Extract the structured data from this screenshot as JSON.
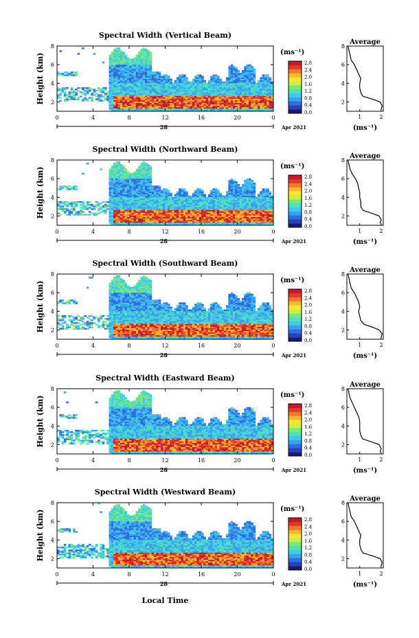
{
  "figure": {
    "date_label": "Apr 2021",
    "xlabel_bottom": "Local Time",
    "day_label": "28",
    "x_tick_labels": [
      "0",
      "4",
      "8",
      "12",
      "16",
      "20",
      "0"
    ],
    "colorbar_unit": "(ms⁻¹)",
    "colorbar_ticks": [
      "0.0",
      "0.4",
      "0.8",
      "1.2",
      "1.6",
      "2.0",
      "2.4",
      "2.8"
    ],
    "colormap": [
      "#1a1a6e",
      "#2d3fb5",
      "#2f6fe0",
      "#3aa0f0",
      "#45c8e8",
      "#4fe0c0",
      "#7de87a",
      "#c8f04a",
      "#f8e830",
      "#f8b830",
      "#f07a2a",
      "#e0382a",
      "#c8182a"
    ],
    "average_title": "Average",
    "average_unit": "(ms⁻¹)"
  },
  "chart_data": [
    {
      "type": "heatmap",
      "title": "Spectral Width (Vertical Beam)",
      "ylabel": "Height (km)",
      "xlabel": "Local Time",
      "xlim": [
        0,
        24
      ],
      "ylim": [
        1,
        8
      ],
      "y_ticks": [
        2,
        4,
        6,
        8
      ],
      "colorbar_range": [
        0.0,
        2.8
      ],
      "average_profile": {
        "title": "Average",
        "xlabel": "(ms⁻¹)",
        "x_ticks": [
          1,
          2
        ],
        "xlim": [
          0.4,
          2.1
        ],
        "ylim": [
          1,
          8
        ],
        "height": [
          1.2,
          1.6,
          2.0,
          2.3,
          2.6,
          3.0,
          3.5,
          4.0,
          4.5,
          5.0,
          5.5,
          6.0,
          6.5,
          7.0,
          7.5,
          8.0
        ],
        "width": [
          2.0,
          2.05,
          1.95,
          1.6,
          1.15,
          1.05,
          1.0,
          1.0,
          1.05,
          0.95,
          0.85,
          0.75,
          0.6,
          0.55,
          0.5,
          0.45
        ]
      }
    },
    {
      "type": "heatmap",
      "title": "Spectral Width (Northward Beam)",
      "ylabel": "Height (km)",
      "xlabel": "Local Time",
      "xlim": [
        0,
        24
      ],
      "ylim": [
        1,
        8
      ],
      "y_ticks": [
        2,
        4,
        6,
        8
      ],
      "colorbar_range": [
        0.0,
        2.8
      ],
      "average_profile": {
        "title": "Average",
        "xlabel": "(ms⁻¹)",
        "x_ticks": [
          1,
          2
        ],
        "xlim": [
          0.4,
          2.1
        ],
        "ylim": [
          1,
          8
        ],
        "height": [
          1.2,
          1.6,
          2.0,
          2.3,
          2.6,
          3.0,
          3.5,
          4.0,
          4.5,
          5.0,
          5.5,
          6.0,
          6.5,
          7.0,
          7.5,
          8.0
        ],
        "width": [
          1.95,
          2.0,
          1.9,
          1.55,
          1.15,
          1.05,
          1.05,
          1.0,
          1.0,
          0.95,
          0.9,
          0.8,
          0.65,
          0.55,
          0.5,
          0.45
        ]
      }
    },
    {
      "type": "heatmap",
      "title": "Spectral Width (Southward Beam)",
      "ylabel": "Height (km)",
      "xlabel": "Local Time",
      "xlim": [
        0,
        24
      ],
      "ylim": [
        1,
        8
      ],
      "y_ticks": [
        2,
        4,
        6,
        8
      ],
      "colorbar_range": [
        0.0,
        2.8
      ],
      "average_profile": {
        "title": "Average",
        "xlabel": "(ms⁻¹)",
        "x_ticks": [
          1,
          2
        ],
        "xlim": [
          0.4,
          2.1
        ],
        "ylim": [
          1,
          8
        ],
        "height": [
          1.2,
          1.6,
          2.0,
          2.3,
          2.6,
          3.0,
          3.5,
          4.0,
          4.5,
          5.0,
          5.5,
          6.0,
          6.5,
          7.0,
          7.5,
          8.0
        ],
        "width": [
          2.0,
          2.05,
          1.9,
          1.6,
          1.2,
          1.05,
          1.0,
          0.95,
          1.0,
          0.95,
          0.85,
          0.75,
          0.6,
          0.55,
          0.5,
          0.45
        ]
      }
    },
    {
      "type": "heatmap",
      "title": "Spectral Width (Eastward Beam)",
      "ylabel": "Height (km)",
      "xlabel": "Local Time",
      "xlim": [
        0,
        24
      ],
      "ylim": [
        1,
        8
      ],
      "y_ticks": [
        2,
        4,
        6,
        8
      ],
      "colorbar_range": [
        0.0,
        2.8
      ],
      "average_profile": {
        "title": "Average",
        "xlabel": "(ms⁻¹)",
        "x_ticks": [
          1,
          2
        ],
        "xlim": [
          0.4,
          2.1
        ],
        "ylim": [
          1,
          8
        ],
        "height": [
          1.2,
          1.6,
          2.0,
          2.3,
          2.6,
          3.0,
          3.5,
          4.0,
          4.5,
          5.0,
          5.5,
          6.0,
          6.5,
          7.0,
          7.5,
          8.0
        ],
        "width": [
          1.95,
          2.0,
          1.9,
          1.55,
          1.15,
          1.05,
          1.0,
          1.0,
          1.0,
          0.95,
          0.85,
          0.75,
          0.65,
          0.55,
          0.5,
          0.45
        ]
      }
    },
    {
      "type": "heatmap",
      "title": "Spectral Width (Westward Beam)",
      "ylabel": "Height (km)",
      "xlabel": "Local Time",
      "xlim": [
        0,
        24
      ],
      "ylim": [
        1,
        8
      ],
      "y_ticks": [
        2,
        4,
        6,
        8
      ],
      "colorbar_range": [
        0.0,
        2.8
      ],
      "average_profile": {
        "title": "Average",
        "xlabel": "(ms⁻¹)",
        "x_ticks": [
          1,
          2
        ],
        "xlim": [
          0.4,
          2.1
        ],
        "ylim": [
          1,
          8
        ],
        "height": [
          1.2,
          1.6,
          2.0,
          2.3,
          2.6,
          3.0,
          3.5,
          4.0,
          4.5,
          5.0,
          5.5,
          6.0,
          6.5,
          7.0,
          7.5,
          8.0
        ],
        "width": [
          2.0,
          2.05,
          1.95,
          1.6,
          1.15,
          1.05,
          1.0,
          1.0,
          1.05,
          0.95,
          0.85,
          0.75,
          0.6,
          0.55,
          0.5,
          0.45
        ]
      }
    }
  ]
}
